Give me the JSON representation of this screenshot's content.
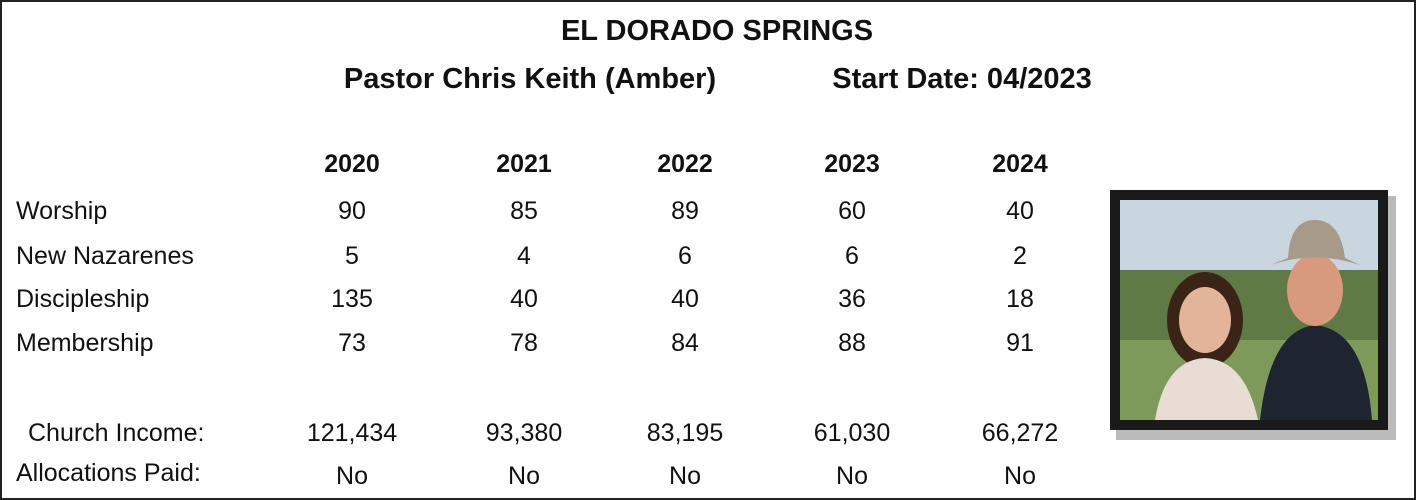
{
  "header": {
    "title": "EL DORADO SPRINGS",
    "pastor": "Pastor Chris Keith (Amber)",
    "start_date": "Start Date: 04/2023"
  },
  "table": {
    "columns": [
      "2020",
      "2021",
      "2022",
      "2023",
      "2024"
    ],
    "rows": [
      {
        "label": "Worship",
        "cells": [
          "90",
          "85",
          "89",
          "60",
          "40"
        ]
      },
      {
        "label": "New Nazarenes",
        "cells": [
          "5",
          "4",
          "6",
          "6",
          "2"
        ]
      },
      {
        "label": "Discipleship",
        "cells": [
          "135",
          "40",
          "40",
          "36",
          "18"
        ]
      },
      {
        "label": "Membership",
        "cells": [
          "73",
          "78",
          "84",
          "88",
          "91"
        ]
      },
      {
        "label": "Church Income:",
        "cells": [
          "121,434",
          "93,380",
          "83,195",
          "61,030",
          "66,272"
        ]
      },
      {
        "label": "Allocations Paid:",
        "cells": [
          "No",
          "No",
          "No",
          "No",
          "No"
        ]
      }
    ]
  }
}
